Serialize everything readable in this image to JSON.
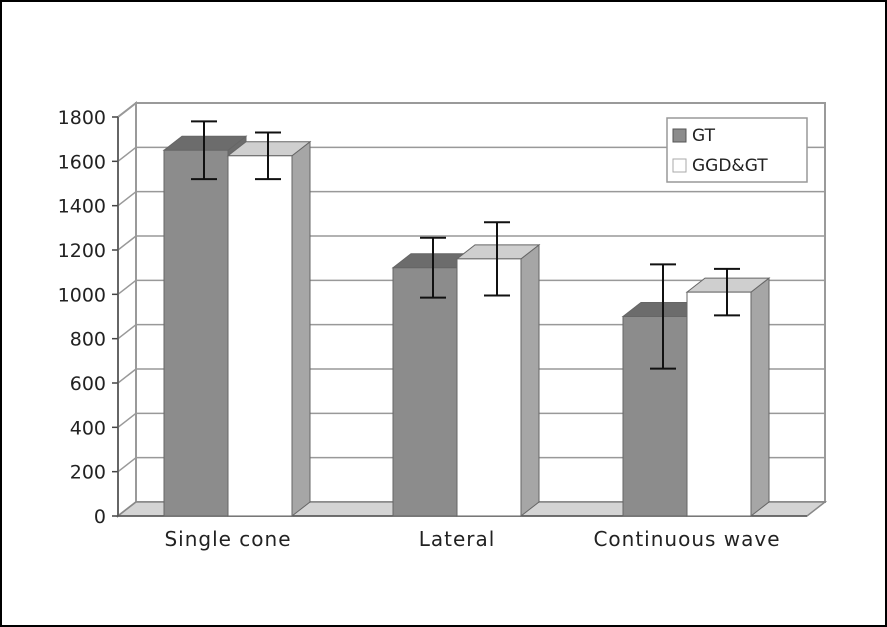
{
  "chart_data": {
    "type": "bar",
    "categories": [
      "Single cone",
      "Lateral",
      "Continuous wave"
    ],
    "series": [
      {
        "name": "GT",
        "values": [
          1650,
          1120,
          900
        ],
        "error": [
          130,
          135,
          235
        ]
      },
      {
        "name": "GGD&GT",
        "values": [
          1625,
          1160,
          1010
        ],
        "error": [
          105,
          165,
          105
        ]
      }
    ],
    "yticks": [
      "0",
      "200",
      "400",
      "600",
      "800",
      "1000",
      "1200",
      "1400",
      "1600",
      "1800"
    ],
    "ylim": [
      0,
      1800
    ],
    "grid": true,
    "legend": "top-right",
    "colors": {
      "GT": "#8c8c8c",
      "GGD&GT": "#ffffff"
    }
  }
}
